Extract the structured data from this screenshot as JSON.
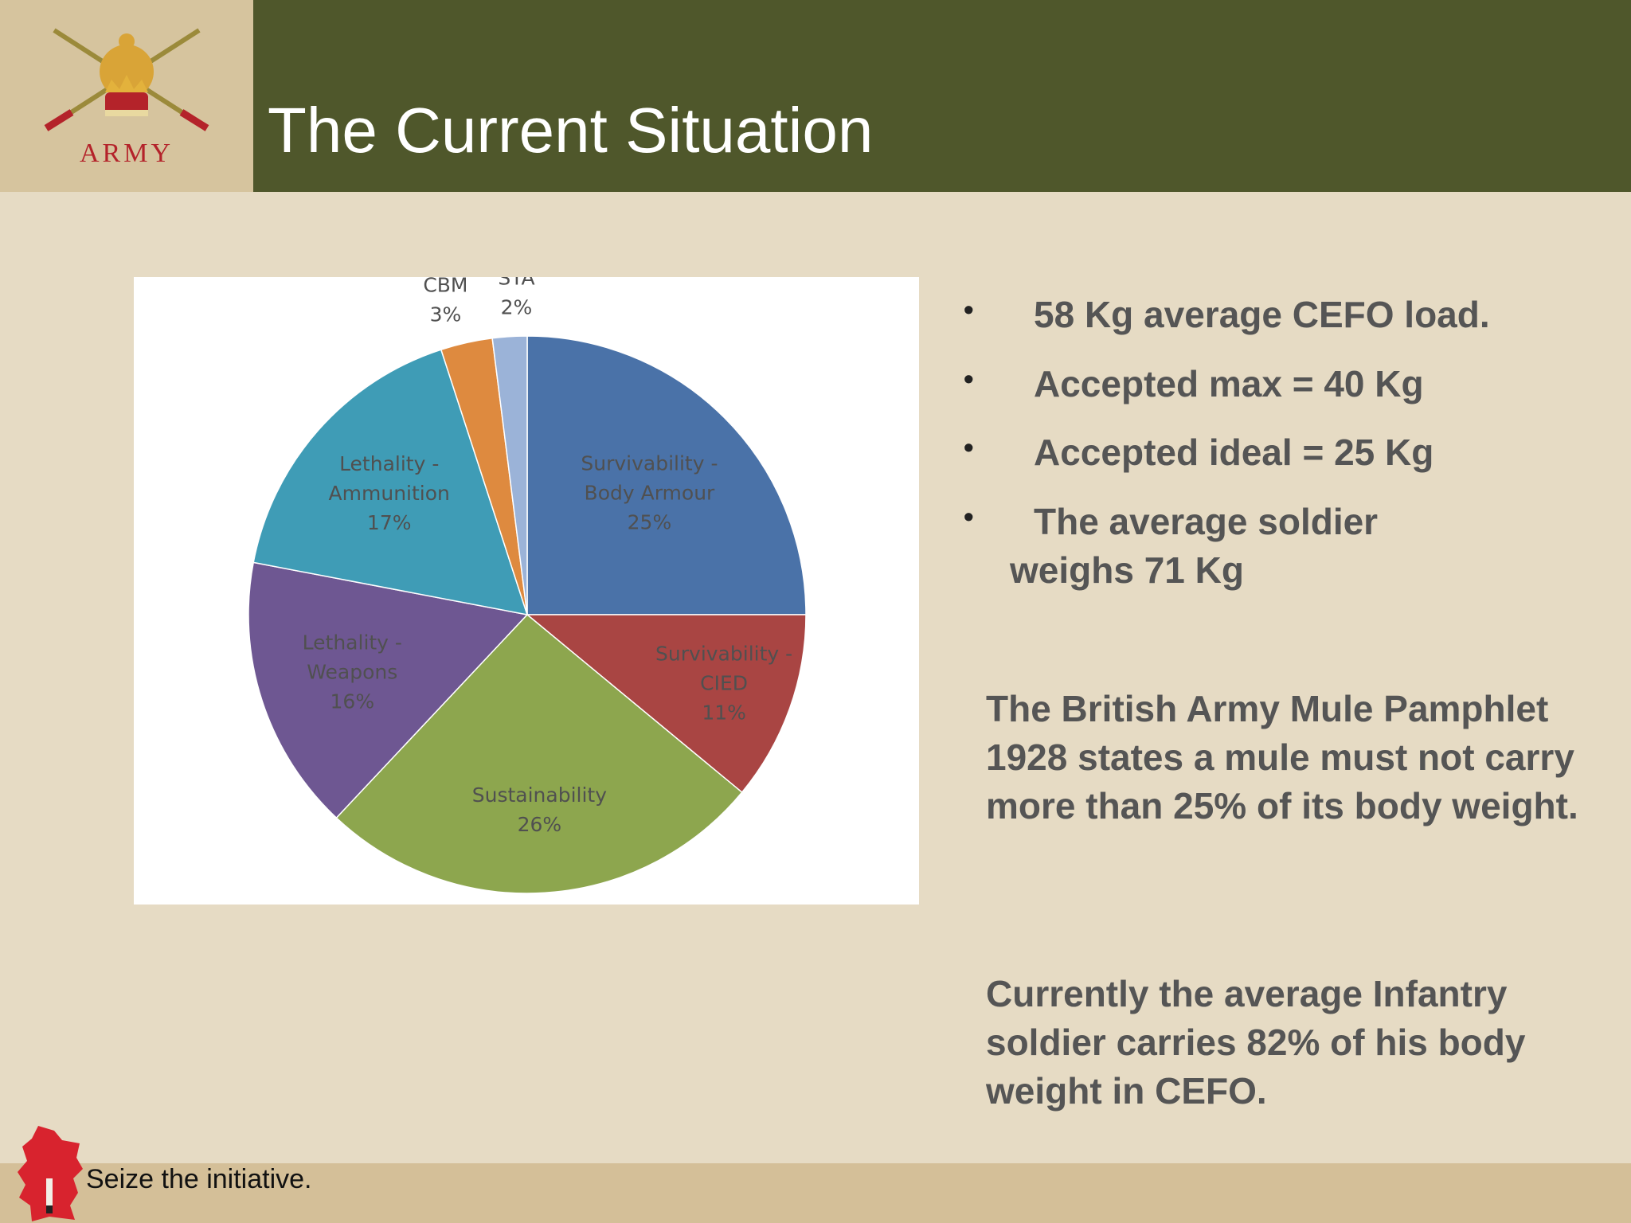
{
  "header": {
    "title": "The Current Situation",
    "logo_text": "ARMY",
    "logo_icon": "army-crest-icon",
    "bar_color": "#4f572b",
    "logo_bg": "#d6c49e"
  },
  "chart_data": {
    "type": "pie",
    "title": "",
    "slices": [
      {
        "label_lines": [
          "Survivability -",
          "Body Armour"
        ],
        "value": 25,
        "pct": "25%",
        "color": "#4a72a8"
      },
      {
        "label_lines": [
          "Survivability -",
          "CIED"
        ],
        "value": 11,
        "pct": "11%",
        "color": "#a94543"
      },
      {
        "label_lines": [
          "Sustainability"
        ],
        "value": 26,
        "pct": "26%",
        "color": "#8da64e"
      },
      {
        "label_lines": [
          "Lethality -",
          "Weapons"
        ],
        "value": 16,
        "pct": "16%",
        "color": "#6e5792"
      },
      {
        "label_lines": [
          "Lethality -",
          "Ammunition"
        ],
        "value": 17,
        "pct": "17%",
        "color": "#3f9cb6"
      },
      {
        "label_lines": [
          "CBM"
        ],
        "value": 3,
        "pct": "3%",
        "color": "#de8a3f"
      },
      {
        "label_lines": [
          "STA"
        ],
        "value": 2,
        "pct": "2%",
        "color": "#9bb3d8"
      }
    ]
  },
  "bullets": [
    {
      "line1": "58 Kg average CEFO load.",
      "line2": ""
    },
    {
      "line1": "Accepted max = 40 Kg",
      "line2": ""
    },
    {
      "line1": "Accepted ideal = 25 Kg",
      "line2": ""
    },
    {
      "line1": "The average soldier",
      "line2": "weighs 71 Kg"
    }
  ],
  "paragraphs": {
    "mule": "The British Army Mule Pamphlet 1928 states a mule must not carry more than 25% of its body weight.",
    "current": "Currently the average Infantry soldier carries 82% of his body weight in CEFO."
  },
  "footer": {
    "tagline": "Seize the initiative.",
    "icon": "wales-dragon-icon"
  }
}
